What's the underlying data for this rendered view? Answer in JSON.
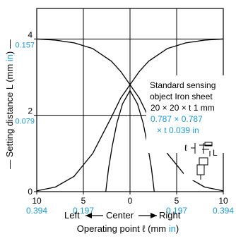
{
  "colors": {
    "line": "#000000",
    "blue": "#1a9bd7",
    "background": "#ffffff"
  },
  "chart_data": {
    "type": "line",
    "xlabel": "Operating point ℓ (mm in)",
    "xlabel_parts": {
      "main": "Operating point ℓ (mm ",
      "unit": "in",
      "close": ")"
    },
    "ylabel_parts": {
      "main": "— Setting distance L (mm ",
      "unit": "in",
      "close": ") —"
    },
    "direction_labels": {
      "left": "Left",
      "center": "Center",
      "right": "Right"
    },
    "x_ticks": [
      {
        "value": -10,
        "mm": "10",
        "in": "0.394"
      },
      {
        "value": -5,
        "mm": "5",
        "in": "0.197"
      },
      {
        "value": 0,
        "mm": "0",
        "in": ""
      },
      {
        "value": 5,
        "mm": "5",
        "in": "0.197"
      },
      {
        "value": 10,
        "mm": "10",
        "in": "0.394"
      }
    ],
    "y_ticks": [
      {
        "value": 0,
        "mm": "0",
        "in": ""
      },
      {
        "value": 2,
        "mm": "2",
        "in": "0.079"
      },
      {
        "value": 4,
        "mm": "4",
        "in": "0.157"
      }
    ],
    "xlim": [
      -10,
      10
    ],
    "ylim": [
      0,
      4.8
    ],
    "grid": true,
    "series": [
      {
        "x": [
          -10,
          -8,
          -6,
          -4,
          -2,
          -1,
          0,
          1,
          2,
          4,
          6,
          8,
          10
        ],
        "y": [
          4.0,
          3.97,
          3.9,
          3.75,
          3.42,
          3.15,
          2.8,
          2.45,
          1.95,
          1.0,
          0.4,
          0.12,
          0.02
        ]
      },
      {
        "x": [
          -10,
          -8,
          -6,
          -4,
          -2,
          -1,
          0,
          1,
          2,
          4,
          6,
          8,
          10
        ],
        "y": [
          0.02,
          0.12,
          0.4,
          1.0,
          1.95,
          2.45,
          2.8,
          3.15,
          3.42,
          3.75,
          3.9,
          3.97,
          4.0
        ]
      },
      {
        "x": [
          -2.6,
          -2.3,
          -1.9,
          -1.4,
          -0.8,
          0,
          0.8,
          1.4,
          1.9,
          2.3,
          2.6
        ],
        "y": [
          0,
          0.6,
          1.2,
          1.8,
          2.3,
          2.65,
          2.3,
          1.8,
          1.2,
          0.6,
          0
        ]
      }
    ],
    "annotation": {
      "lines_black": [
        "Standard sensing",
        "object Iron sheet",
        "20 × 20 × t 1 mm"
      ],
      "lines_blue": [
        "0.787 × 0.787",
        "× t 0.039 in"
      ],
      "inset_labels": {
        "l": "ℓ",
        "L": "L"
      }
    }
  }
}
